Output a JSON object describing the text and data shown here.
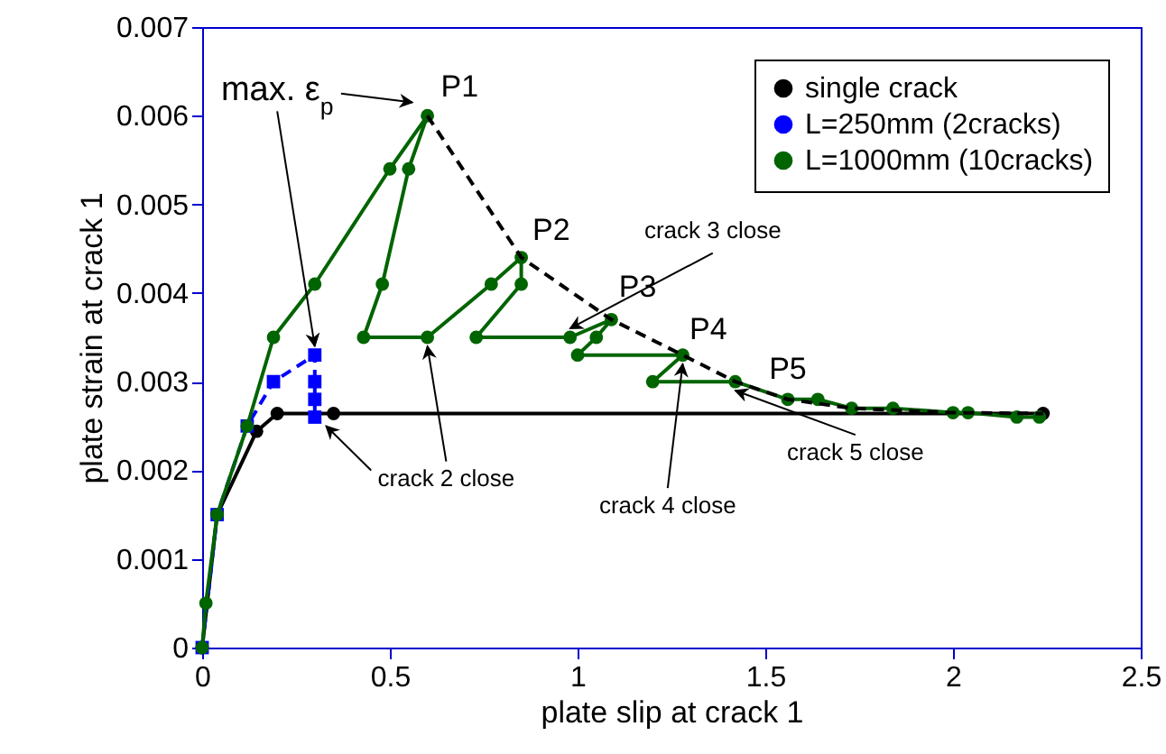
{
  "chart_data": {
    "type": "line",
    "xlabel": "plate slip at crack 1",
    "ylabel": "plate strain at crack 1",
    "xlim": [
      0,
      2.5
    ],
    "xticks": [
      0,
      0.5,
      1,
      1.5,
      2,
      2.5
    ],
    "ylim": [
      0,
      0.007
    ],
    "yticks": [
      0,
      0.001,
      0.002,
      0.003,
      0.004,
      0.005,
      0.006,
      0.007
    ],
    "legend": "top right",
    "grid": false,
    "series": [
      {
        "name": "single crack",
        "color": "#000000",
        "marker": "circle",
        "line_style": "solid",
        "x": [
          0,
          0.04,
          0.145,
          0.2,
          0.35,
          2.24
        ],
        "values": [
          0,
          0.0015,
          0.00244,
          0.00264,
          0.00264,
          0.00264
        ]
      },
      {
        "name": "L=250mm (2cracks)",
        "color": "#0000ff",
        "marker": "square",
        "line_style": "dashed",
        "x": [
          0,
          0.04,
          0.12,
          0.19,
          0.3,
          0.3,
          0.3,
          0.3
        ],
        "values": [
          0,
          0.0015,
          0.0025,
          0.003,
          0.0033,
          0.003,
          0.0028,
          0.0026
        ]
      },
      {
        "name": "L=1000mm (10cracks)",
        "color": "#006400",
        "marker": "circle",
        "line_style": "solid",
        "x": [
          0,
          0.01,
          0.04,
          0.12,
          0.19,
          0.3,
          0.5,
          0.6,
          0.55,
          0.48,
          0.43,
          0.6,
          0.77,
          0.85,
          0.85,
          0.73,
          0.98,
          1.09,
          1.05,
          1.0,
          1.28,
          1.2,
          1.42,
          1.56,
          1.64,
          1.73,
          1.84,
          2.0,
          2.04,
          2.17,
          2.23
        ],
        "values": [
          0,
          0.0005,
          0.0015,
          0.0025,
          0.0035,
          0.0041,
          0.0054,
          0.006,
          0.0054,
          0.0041,
          0.0035,
          0.0035,
          0.0041,
          0.0044,
          0.0041,
          0.0035,
          0.0035,
          0.0037,
          0.0035,
          0.0033,
          0.0033,
          0.003,
          0.003,
          0.0028,
          0.0028,
          0.0027,
          0.0027,
          0.00265,
          0.00265,
          0.0026,
          0.0026
        ]
      },
      {
        "color": "#000000",
        "marker": "none",
        "line_style": "dashed",
        "x": [
          0.6,
          0.85,
          1.09,
          1.28,
          1.42,
          1.56,
          1.73,
          2.0,
          2.24
        ],
        "values": [
          0.006,
          0.0044,
          0.0037,
          0.0033,
          0.003,
          0.0028,
          0.0027,
          0.00265,
          0.00264
        ]
      }
    ],
    "annotations": [
      {
        "text": "max. ε$_{p}$",
        "x": 0.3,
        "y": 0.0033
      },
      {
        "text": "P1",
        "x": 0.6,
        "y": 0.006
      },
      {
        "text": "P2",
        "x": 0.85,
        "y": 0.0044
      },
      {
        "text": "P3",
        "x": 1.09,
        "y": 0.0037
      },
      {
        "text": "P4",
        "x": 1.28,
        "y": 0.0033
      },
      {
        "text": "P5",
        "x": 1.42,
        "y": 0.003
      },
      {
        "text": "crack 2 close",
        "x": 0.6,
        "y": 0.0035
      },
      {
        "text": "crack 3 close",
        "x": 0.98,
        "y": 0.0035
      },
      {
        "text": "crack 4 close",
        "x": 1.28,
        "y": 0.0033
      },
      {
        "text": "crack 5 close",
        "x": 1.42,
        "y": 0.003
      }
    ]
  }
}
